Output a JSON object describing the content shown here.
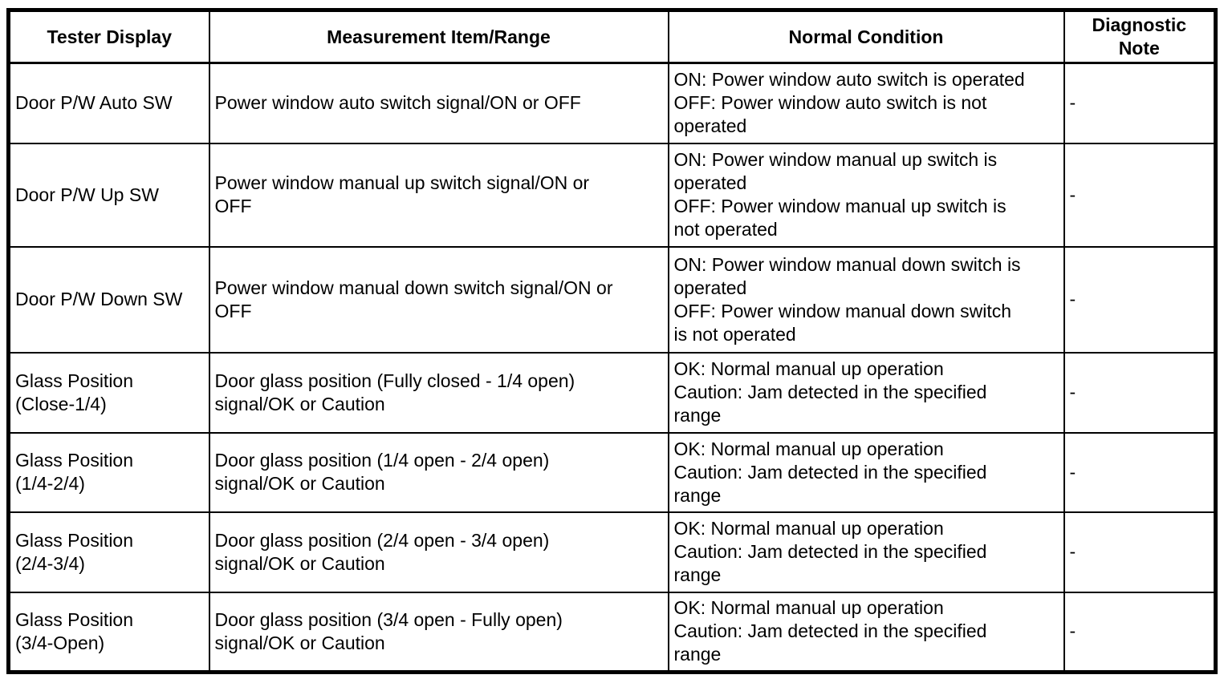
{
  "page": {
    "background": "#ffffff",
    "border_color": "#000000"
  },
  "table": {
    "headers": {
      "tester_display": "Tester Display",
      "measurement": "Measurement Item/Range",
      "normal_condition": "Normal Condition",
      "diagnostic_note": [
        "Diagnostic",
        "Note"
      ]
    },
    "rows": [
      {
        "tester_display": "Door P/W Auto SW",
        "measurement": "Power window auto switch signal/ON or OFF",
        "normal_condition": [
          "ON: Power window auto switch is operated",
          "OFF: Power window auto switch is not",
          "operated"
        ],
        "diagnostic_note": "-"
      },
      {
        "tester_display": "Door P/W Up SW",
        "measurement": [
          "Power window manual up switch signal/ON or",
          "OFF"
        ],
        "normal_condition": [
          "ON: Power window manual up switch is",
          "operated",
          "OFF: Power window manual up switch is",
          "not operated"
        ],
        "diagnostic_note": "-"
      },
      {
        "tester_display": "Door P/W Down SW",
        "measurement": [
          "Power window manual down switch signal/ON or",
          "OFF"
        ],
        "normal_condition": [
          "ON: Power window manual down switch is",
          "operated",
          "OFF: Power window manual down switch",
          "is not operated"
        ],
        "diagnostic_note": "-"
      },
      {
        "tester_display": [
          "Glass Position",
          "(Close-1/4)"
        ],
        "measurement": [
          "Door glass position (Fully closed - 1/4 open)",
          "signal/OK or Caution"
        ],
        "normal_condition": [
          "OK: Normal manual up operation",
          "Caution: Jam detected in the specified",
          "range"
        ],
        "diagnostic_note": "-"
      },
      {
        "tester_display": [
          "Glass Position",
          "(1/4-2/4)"
        ],
        "measurement": [
          "Door glass position (1/4 open - 2/4 open)",
          "signal/OK or Caution"
        ],
        "normal_condition": [
          "OK: Normal manual up operation",
          "Caution: Jam detected in the specified",
          "range"
        ],
        "diagnostic_note": "-"
      },
      {
        "tester_display": [
          "Glass Position",
          "(2/4-3/4)"
        ],
        "measurement": [
          "Door glass position (2/4 open - 3/4 open)",
          "signal/OK or Caution"
        ],
        "normal_condition": [
          "OK: Normal manual up operation",
          "Caution: Jam detected in the specified",
          "range"
        ],
        "diagnostic_note": "-"
      },
      {
        "tester_display": [
          "Glass Position",
          "(3/4-Open)"
        ],
        "measurement": [
          "Door glass position (3/4 open - Fully open)",
          "signal/OK or Caution"
        ],
        "normal_condition": [
          "OK: Normal manual up operation",
          "Caution: Jam detected in the specified",
          "range"
        ],
        "diagnostic_note": "-"
      }
    ]
  }
}
